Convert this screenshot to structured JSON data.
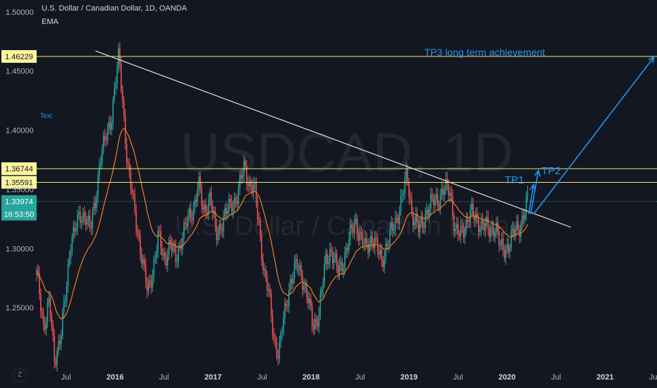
{
  "chart_data": {
    "type": "candlestick",
    "symbol_title": "U.S. Dollar / Canadian Dollar, 1D, OANDA",
    "indicator_label": "EMA",
    "watermark_symbol": "USDCAD, 1D",
    "watermark_name": "U.S. Dollar / Canadian Dollar",
    "text_note": "Text",
    "annotation_tp3": "TP3 long term achievement",
    "annotation_tp1": "TP1",
    "annotation_tp2": "TP2",
    "y_ticks": [
      "1.50000",
      "1.45000",
      "1.40000",
      "1.35000",
      "1.30000",
      "1.25000"
    ],
    "y_tick_values": [
      1.5,
      1.45,
      1.4,
      1.35,
      1.3,
      1.25
    ],
    "ylim": [
      1.2,
      1.51
    ],
    "x_ticks": [
      {
        "label": "Jul",
        "t": 2015.5,
        "bold": false
      },
      {
        "label": "2016",
        "t": 2016.0,
        "bold": true
      },
      {
        "label": "Jul",
        "t": 2016.5,
        "bold": false
      },
      {
        "label": "2017",
        "t": 2017.0,
        "bold": true
      },
      {
        "label": "Jul",
        "t": 2017.5,
        "bold": false
      },
      {
        "label": "2018",
        "t": 2018.0,
        "bold": true
      },
      {
        "label": "Jul",
        "t": 2018.5,
        "bold": false
      },
      {
        "label": "2019",
        "t": 2019.0,
        "bold": true
      },
      {
        "label": "Jul",
        "t": 2019.5,
        "bold": false
      },
      {
        "label": "2020",
        "t": 2020.0,
        "bold": true
      },
      {
        "label": "Jul",
        "t": 2020.5,
        "bold": false
      },
      {
        "label": "2021",
        "t": 2021.0,
        "bold": true
      },
      {
        "label": "Jul",
        "t": 2021.5,
        "bold": false
      }
    ],
    "xlim": [
      2015.2,
      2021.53
    ],
    "price_lines": [
      {
        "label": "1.46229",
        "value": 1.46229
      },
      {
        "label": "1.36744",
        "value": 1.36744
      },
      {
        "label": "1.35591",
        "value": 1.35591
      }
    ],
    "current_price": {
      "label": "1.33974",
      "value": 1.33974,
      "countdown": "16:53:50"
    },
    "trendline": [
      [
        2015.8,
        1.467
      ],
      [
        2020.65,
        1.318
      ]
    ],
    "tp1_arrow": [
      [
        2020.22,
        1.329
      ],
      [
        2020.27,
        1.354
      ]
    ],
    "tp2_arrow": [
      [
        2020.24,
        1.329
      ],
      [
        2020.32,
        1.366
      ]
    ],
    "tp3_arrow": [
      [
        2020.27,
        1.329
      ],
      [
        2021.5,
        1.462
      ]
    ],
    "price_path": [
      [
        2015.2,
        1.278
      ],
      [
        2015.27,
        1.235
      ],
      [
        2015.33,
        1.255
      ],
      [
        2015.38,
        1.205
      ],
      [
        2015.45,
        1.23
      ],
      [
        2015.5,
        1.262
      ],
      [
        2015.55,
        1.31
      ],
      [
        2015.62,
        1.322
      ],
      [
        2015.7,
        1.33
      ],
      [
        2015.75,
        1.315
      ],
      [
        2015.8,
        1.34
      ],
      [
        2015.85,
        1.38
      ],
      [
        2015.9,
        1.39
      ],
      [
        2015.96,
        1.41
      ],
      [
        2016.0,
        1.44
      ],
      [
        2016.04,
        1.462
      ],
      [
        2016.08,
        1.42
      ],
      [
        2016.13,
        1.37
      ],
      [
        2016.2,
        1.33
      ],
      [
        2016.27,
        1.295
      ],
      [
        2016.33,
        1.262
      ],
      [
        2016.38,
        1.28
      ],
      [
        2016.44,
        1.31
      ],
      [
        2016.5,
        1.29
      ],
      [
        2016.56,
        1.305
      ],
      [
        2016.62,
        1.29
      ],
      [
        2016.68,
        1.31
      ],
      [
        2016.75,
        1.325
      ],
      [
        2016.8,
        1.335
      ],
      [
        2016.85,
        1.355
      ],
      [
        2016.9,
        1.33
      ],
      [
        2016.97,
        1.345
      ],
      [
        2017.03,
        1.31
      ],
      [
        2017.1,
        1.325
      ],
      [
        2017.17,
        1.335
      ],
      [
        2017.25,
        1.345
      ],
      [
        2017.32,
        1.37
      ],
      [
        2017.37,
        1.355
      ],
      [
        2017.42,
        1.35
      ],
      [
        2017.47,
        1.32
      ],
      [
        2017.52,
        1.28
      ],
      [
        2017.57,
        1.26
      ],
      [
        2017.62,
        1.225
      ],
      [
        2017.67,
        1.21
      ],
      [
        2017.72,
        1.24
      ],
      [
        2017.78,
        1.27
      ],
      [
        2017.85,
        1.285
      ],
      [
        2017.9,
        1.28
      ],
      [
        2017.97,
        1.255
      ],
      [
        2018.02,
        1.235
      ],
      [
        2018.08,
        1.245
      ],
      [
        2018.15,
        1.29
      ],
      [
        2018.2,
        1.3
      ],
      [
        2018.27,
        1.28
      ],
      [
        2018.33,
        1.29
      ],
      [
        2018.4,
        1.31
      ],
      [
        2018.45,
        1.325
      ],
      [
        2018.5,
        1.31
      ],
      [
        2018.55,
        1.3
      ],
      [
        2018.62,
        1.31
      ],
      [
        2018.67,
        1.3
      ],
      [
        2018.72,
        1.29
      ],
      [
        2018.78,
        1.305
      ],
      [
        2018.85,
        1.32
      ],
      [
        2018.92,
        1.34
      ],
      [
        2018.98,
        1.362
      ],
      [
        2019.03,
        1.33
      ],
      [
        2019.1,
        1.315
      ],
      [
        2019.17,
        1.33
      ],
      [
        2019.25,
        1.34
      ],
      [
        2019.32,
        1.345
      ],
      [
        2019.37,
        1.35
      ],
      [
        2019.42,
        1.35
      ],
      [
        2019.47,
        1.315
      ],
      [
        2019.52,
        1.31
      ],
      [
        2019.57,
        1.32
      ],
      [
        2019.62,
        1.33
      ],
      [
        2019.68,
        1.325
      ],
      [
        2019.75,
        1.32
      ],
      [
        2019.82,
        1.315
      ],
      [
        2019.88,
        1.32
      ],
      [
        2019.93,
        1.3
      ],
      [
        2019.98,
        1.3
      ],
      [
        2020.03,
        1.305
      ],
      [
        2020.08,
        1.315
      ],
      [
        2020.13,
        1.32
      ],
      [
        2020.17,
        1.328
      ],
      [
        2020.21,
        1.34
      ]
    ],
    "colors": {
      "background": "#131722",
      "up": "#26a69a",
      "down": "#ef5350",
      "ema": "#f57c1f",
      "hline": "#f5e663",
      "label_bg": "#fff59d",
      "trendline": "#d1d4dc",
      "arrow": "#2196f3",
      "current_label": "#26a69a",
      "watermark": "rgba(120,123,134,0.16)"
    }
  },
  "ui": {
    "zoom_icon": "Z"
  }
}
